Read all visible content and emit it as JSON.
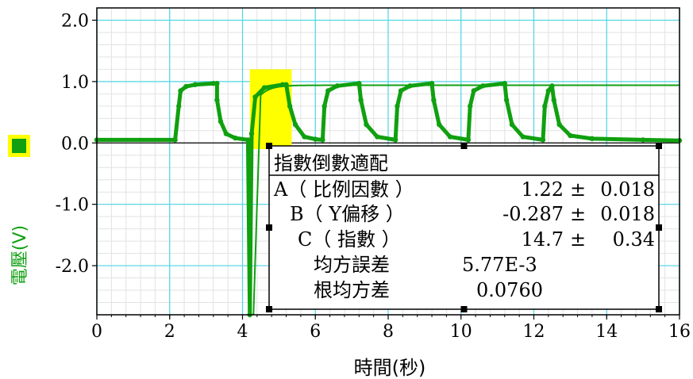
{
  "chart_data": {
    "type": "line",
    "xlabel": "時間(秒)",
    "ylabel": "電壓(V)",
    "xlim": [
      0,
      16
    ],
    "ylim": [
      -2.8,
      2.2
    ],
    "grid": true,
    "x_ticks": [
      "0",
      "2",
      "4",
      "6",
      "8",
      "10",
      "12",
      "14",
      "16"
    ],
    "y_ticks": [
      "2.0",
      "1.0",
      "0.0",
      "-1.0",
      "-2.0"
    ],
    "series": [
      {
        "color": "#10a010",
        "points": [
          [
            0.0,
            0.05
          ],
          [
            2.15,
            0.05
          ],
          [
            2.25,
            0.6
          ],
          [
            2.3,
            0.85
          ],
          [
            2.45,
            0.92
          ],
          [
            2.7,
            0.95
          ],
          [
            3.2,
            0.97
          ],
          [
            3.3,
            0.97
          ],
          [
            3.3,
            0.7
          ],
          [
            3.4,
            0.35
          ],
          [
            3.55,
            0.15
          ],
          [
            3.8,
            0.08
          ],
          [
            4.15,
            0.05
          ],
          [
            4.2,
            -2.8
          ],
          [
            4.25,
            0.15
          ],
          [
            4.35,
            0.75
          ],
          [
            4.6,
            0.9
          ],
          [
            5.1,
            0.95
          ],
          [
            5.2,
            0.95
          ],
          [
            5.3,
            0.6
          ],
          [
            5.45,
            0.3
          ],
          [
            5.7,
            0.1
          ],
          [
            6.0,
            0.06
          ],
          [
            6.2,
            0.05
          ],
          [
            6.25,
            0.6
          ],
          [
            6.35,
            0.85
          ],
          [
            6.6,
            0.93
          ],
          [
            7.2,
            0.97
          ],
          [
            7.25,
            0.7
          ],
          [
            7.4,
            0.3
          ],
          [
            7.7,
            0.1
          ],
          [
            8.2,
            0.05
          ],
          [
            8.25,
            0.6
          ],
          [
            8.35,
            0.85
          ],
          [
            8.6,
            0.93
          ],
          [
            9.2,
            0.97
          ],
          [
            9.25,
            0.7
          ],
          [
            9.4,
            0.3
          ],
          [
            9.7,
            0.1
          ],
          [
            10.2,
            0.05
          ],
          [
            10.25,
            0.6
          ],
          [
            10.35,
            0.85
          ],
          [
            10.6,
            0.93
          ],
          [
            11.2,
            0.97
          ],
          [
            11.25,
            0.7
          ],
          [
            11.4,
            0.3
          ],
          [
            11.7,
            0.1
          ],
          [
            12.25,
            0.05
          ],
          [
            12.3,
            0.6
          ],
          [
            12.4,
            0.85
          ],
          [
            12.5,
            0.93
          ],
          [
            12.55,
            0.7
          ],
          [
            12.7,
            0.3
          ],
          [
            13.0,
            0.12
          ],
          [
            13.6,
            0.07
          ],
          [
            15.0,
            0.05
          ],
          [
            16.0,
            0.04
          ]
        ]
      }
    ],
    "fit": {
      "xrange": [
        4.3,
        16.0
      ],
      "A": 1.22,
      "B": -0.287,
      "C": 14.7
    },
    "highlight": {
      "xrange": [
        4.2,
        5.35
      ],
      "yrange": [
        -0.1,
        1.2
      ],
      "color": "#ffff00"
    },
    "legend_marker_color": "#10a010",
    "legend_marker_border": "#ffff00",
    "annotation": {
      "title": "指數倒數適配",
      "rows": [
        {
          "label": "A（ 比例因數 ）",
          "value": "1.22",
          "pm": "±",
          "err": "0.018"
        },
        {
          "label": "B（ Y偏移 ）",
          "value": "-0.287",
          "pm": "±",
          "err": "0.018"
        },
        {
          "label": "C（ 指數 ）",
          "value": "14.7",
          "pm": "±",
          "err": "0.34"
        }
      ],
      "stats": [
        {
          "label": "均方誤差",
          "value": "5.77E-3"
        },
        {
          "label": "根均方差",
          "value": "0.0760"
        }
      ]
    }
  }
}
